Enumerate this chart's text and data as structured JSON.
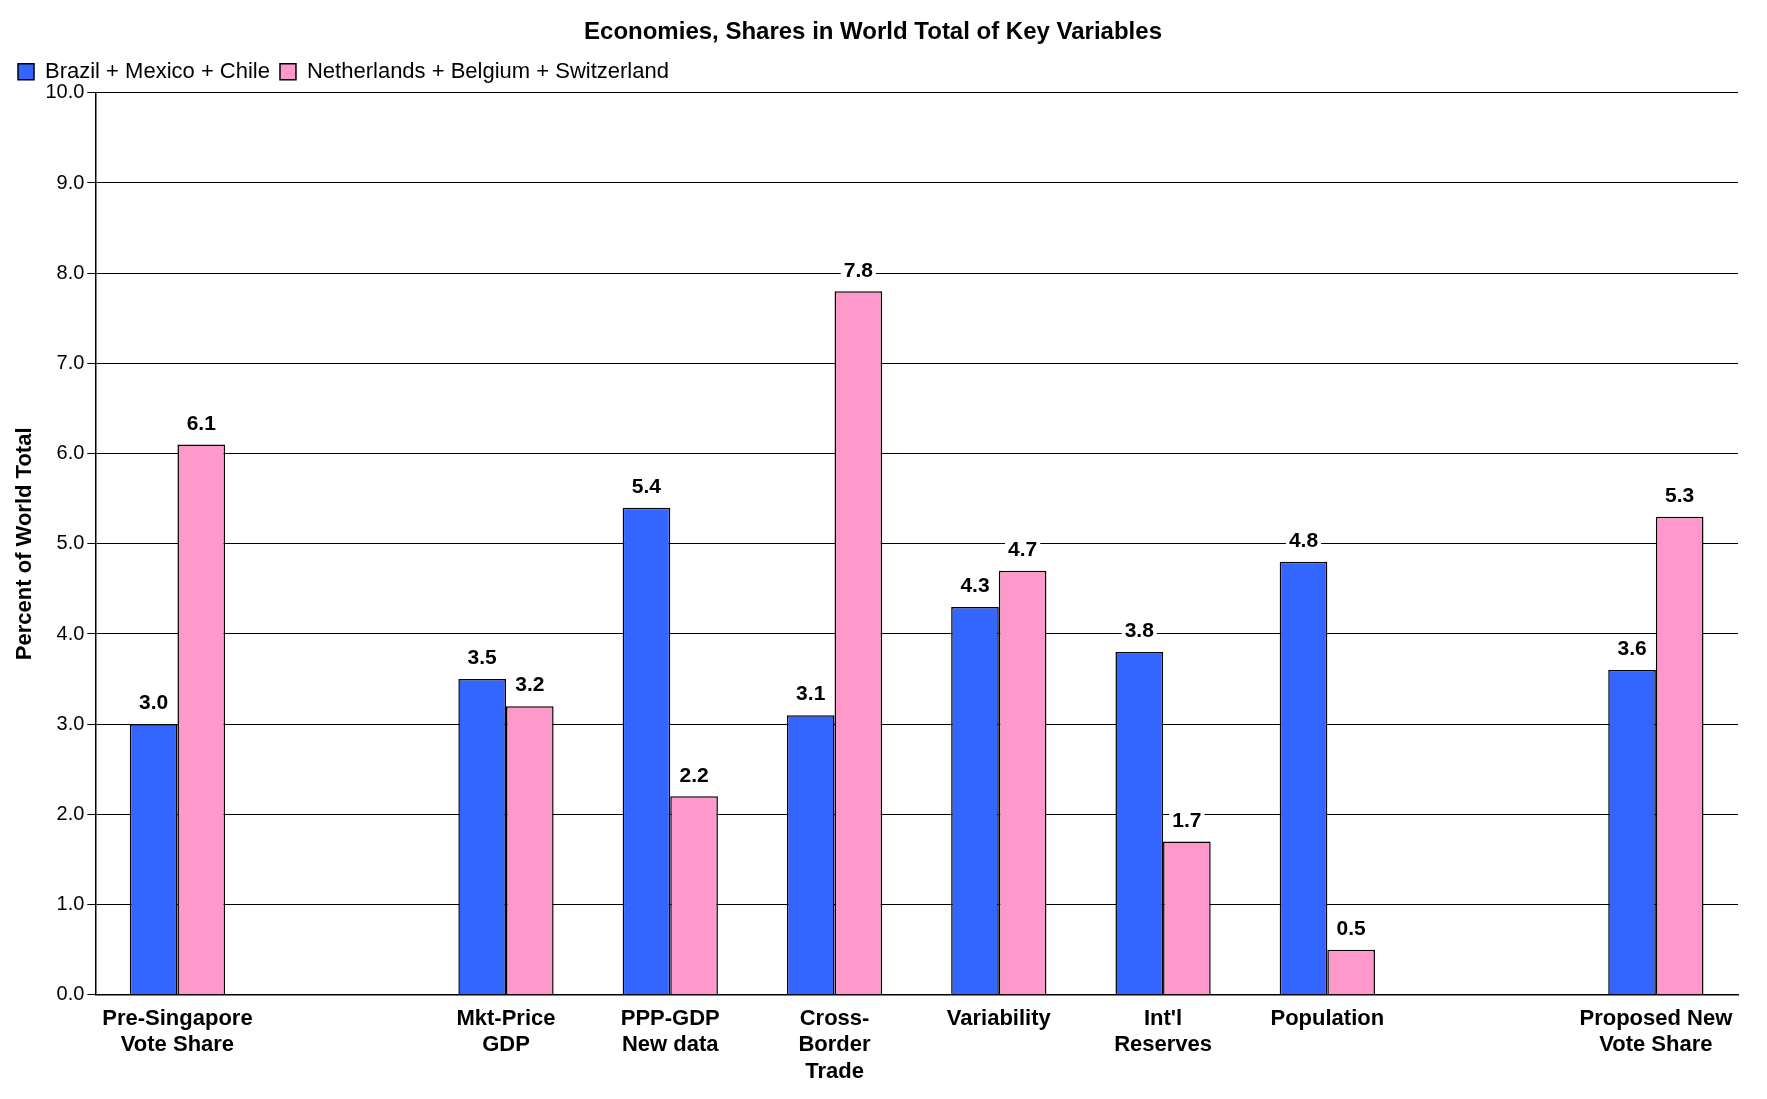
{
  "chart_data": {
    "type": "bar",
    "title": "Economies, Shares in World Total of Key Variables",
    "ylabel": "Percent of World Total",
    "categories": [
      "Pre-Singapore\nVote Share",
      null,
      "Mkt-Price\nGDP",
      "PPP-GDP\nNew data",
      "Cross-\nBorder\nTrade",
      "Variability",
      "Int'l\nReserves",
      "Population",
      null,
      "Proposed New\nVote Share"
    ],
    "series": [
      {
        "name": "Brazil + Mexico + Chile",
        "color": "#3366ff",
        "values": [
          3.0,
          null,
          3.5,
          5.4,
          3.1,
          4.3,
          3.8,
          4.8,
          null,
          3.6
        ],
        "value_labels": [
          "3.0",
          null,
          "3.5",
          "5.4",
          "3.1",
          "4.3",
          "3.8",
          "4.8",
          null,
          "3.6"
        ]
      },
      {
        "name": "Netherlands + Belgium + Switzerland",
        "color": "#ff99cc",
        "values": [
          6.1,
          null,
          3.2,
          2.2,
          7.8,
          4.7,
          1.7,
          0.5,
          null,
          5.3
        ],
        "value_labels": [
          "6.1",
          null,
          "3.2",
          "2.2",
          "7.8",
          "4.7",
          "1.7",
          "0.5",
          null,
          "5.3"
        ]
      }
    ],
    "ylim": [
      0,
      10
    ],
    "yticks": [
      {
        "value": 0,
        "label": "0.0"
      },
      {
        "value": 1,
        "label": "1.0"
      },
      {
        "value": 2,
        "label": "2.0"
      },
      {
        "value": 3,
        "label": "3.0"
      },
      {
        "value": 4,
        "label": "4.0"
      },
      {
        "value": 5,
        "label": "5.0"
      },
      {
        "value": 6,
        "label": "6.0"
      },
      {
        "value": 7,
        "label": "7.0"
      },
      {
        "value": 8,
        "label": "8.0"
      },
      {
        "value": 9,
        "label": "9.0"
      },
      {
        "value": 10,
        "label": "10.0"
      }
    ],
    "grid": "y",
    "legend": "top left"
  }
}
